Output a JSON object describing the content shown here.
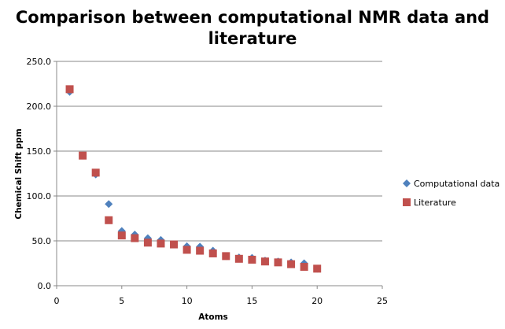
{
  "chart_data": {
    "type": "scatter",
    "title_lines": [
      "Comparison between computational NMR data and",
      "literature"
    ],
    "xlabel": "Atoms",
    "ylabel": "Chemical Shift  ppm",
    "xlim": [
      0,
      25
    ],
    "ylim": [
      0,
      250
    ],
    "x_ticks": [
      "0",
      "5",
      "10",
      "15",
      "20",
      "25"
    ],
    "y_ticks": [
      "0.0",
      "50.0",
      "100.0",
      "150.0",
      "200.0",
      "250.0"
    ],
    "legend_position": "right",
    "series": [
      {
        "name": "Computational data",
        "marker": "diamond",
        "color": "#4f81bd",
        "x": [
          1,
          2,
          3,
          4,
          5,
          6,
          7,
          8,
          9,
          10,
          11,
          12,
          13,
          14,
          15,
          16,
          17,
          18,
          19,
          20
        ],
        "y": [
          216.0,
          145.0,
          124.0,
          91.0,
          61.0,
          57.0,
          53.0,
          51.0,
          46.0,
          44.0,
          43.5,
          39.0,
          33.0,
          31.5,
          31.0,
          28.0,
          27.0,
          26.0,
          25.0,
          19.0
        ]
      },
      {
        "name": "Literature",
        "marker": "square",
        "color": "#c0504d",
        "x": [
          1,
          2,
          3,
          4,
          5,
          6,
          7,
          8,
          9,
          10,
          11,
          12,
          13,
          14,
          15,
          16,
          17,
          18,
          19,
          20
        ],
        "y": [
          219.0,
          145.0,
          126.0,
          73.0,
          56.0,
          53.0,
          48.0,
          47.0,
          46.0,
          40.0,
          39.0,
          36.0,
          33.0,
          30.0,
          29.0,
          27.0,
          26.0,
          24.0,
          21.0,
          19.0
        ]
      }
    ]
  }
}
